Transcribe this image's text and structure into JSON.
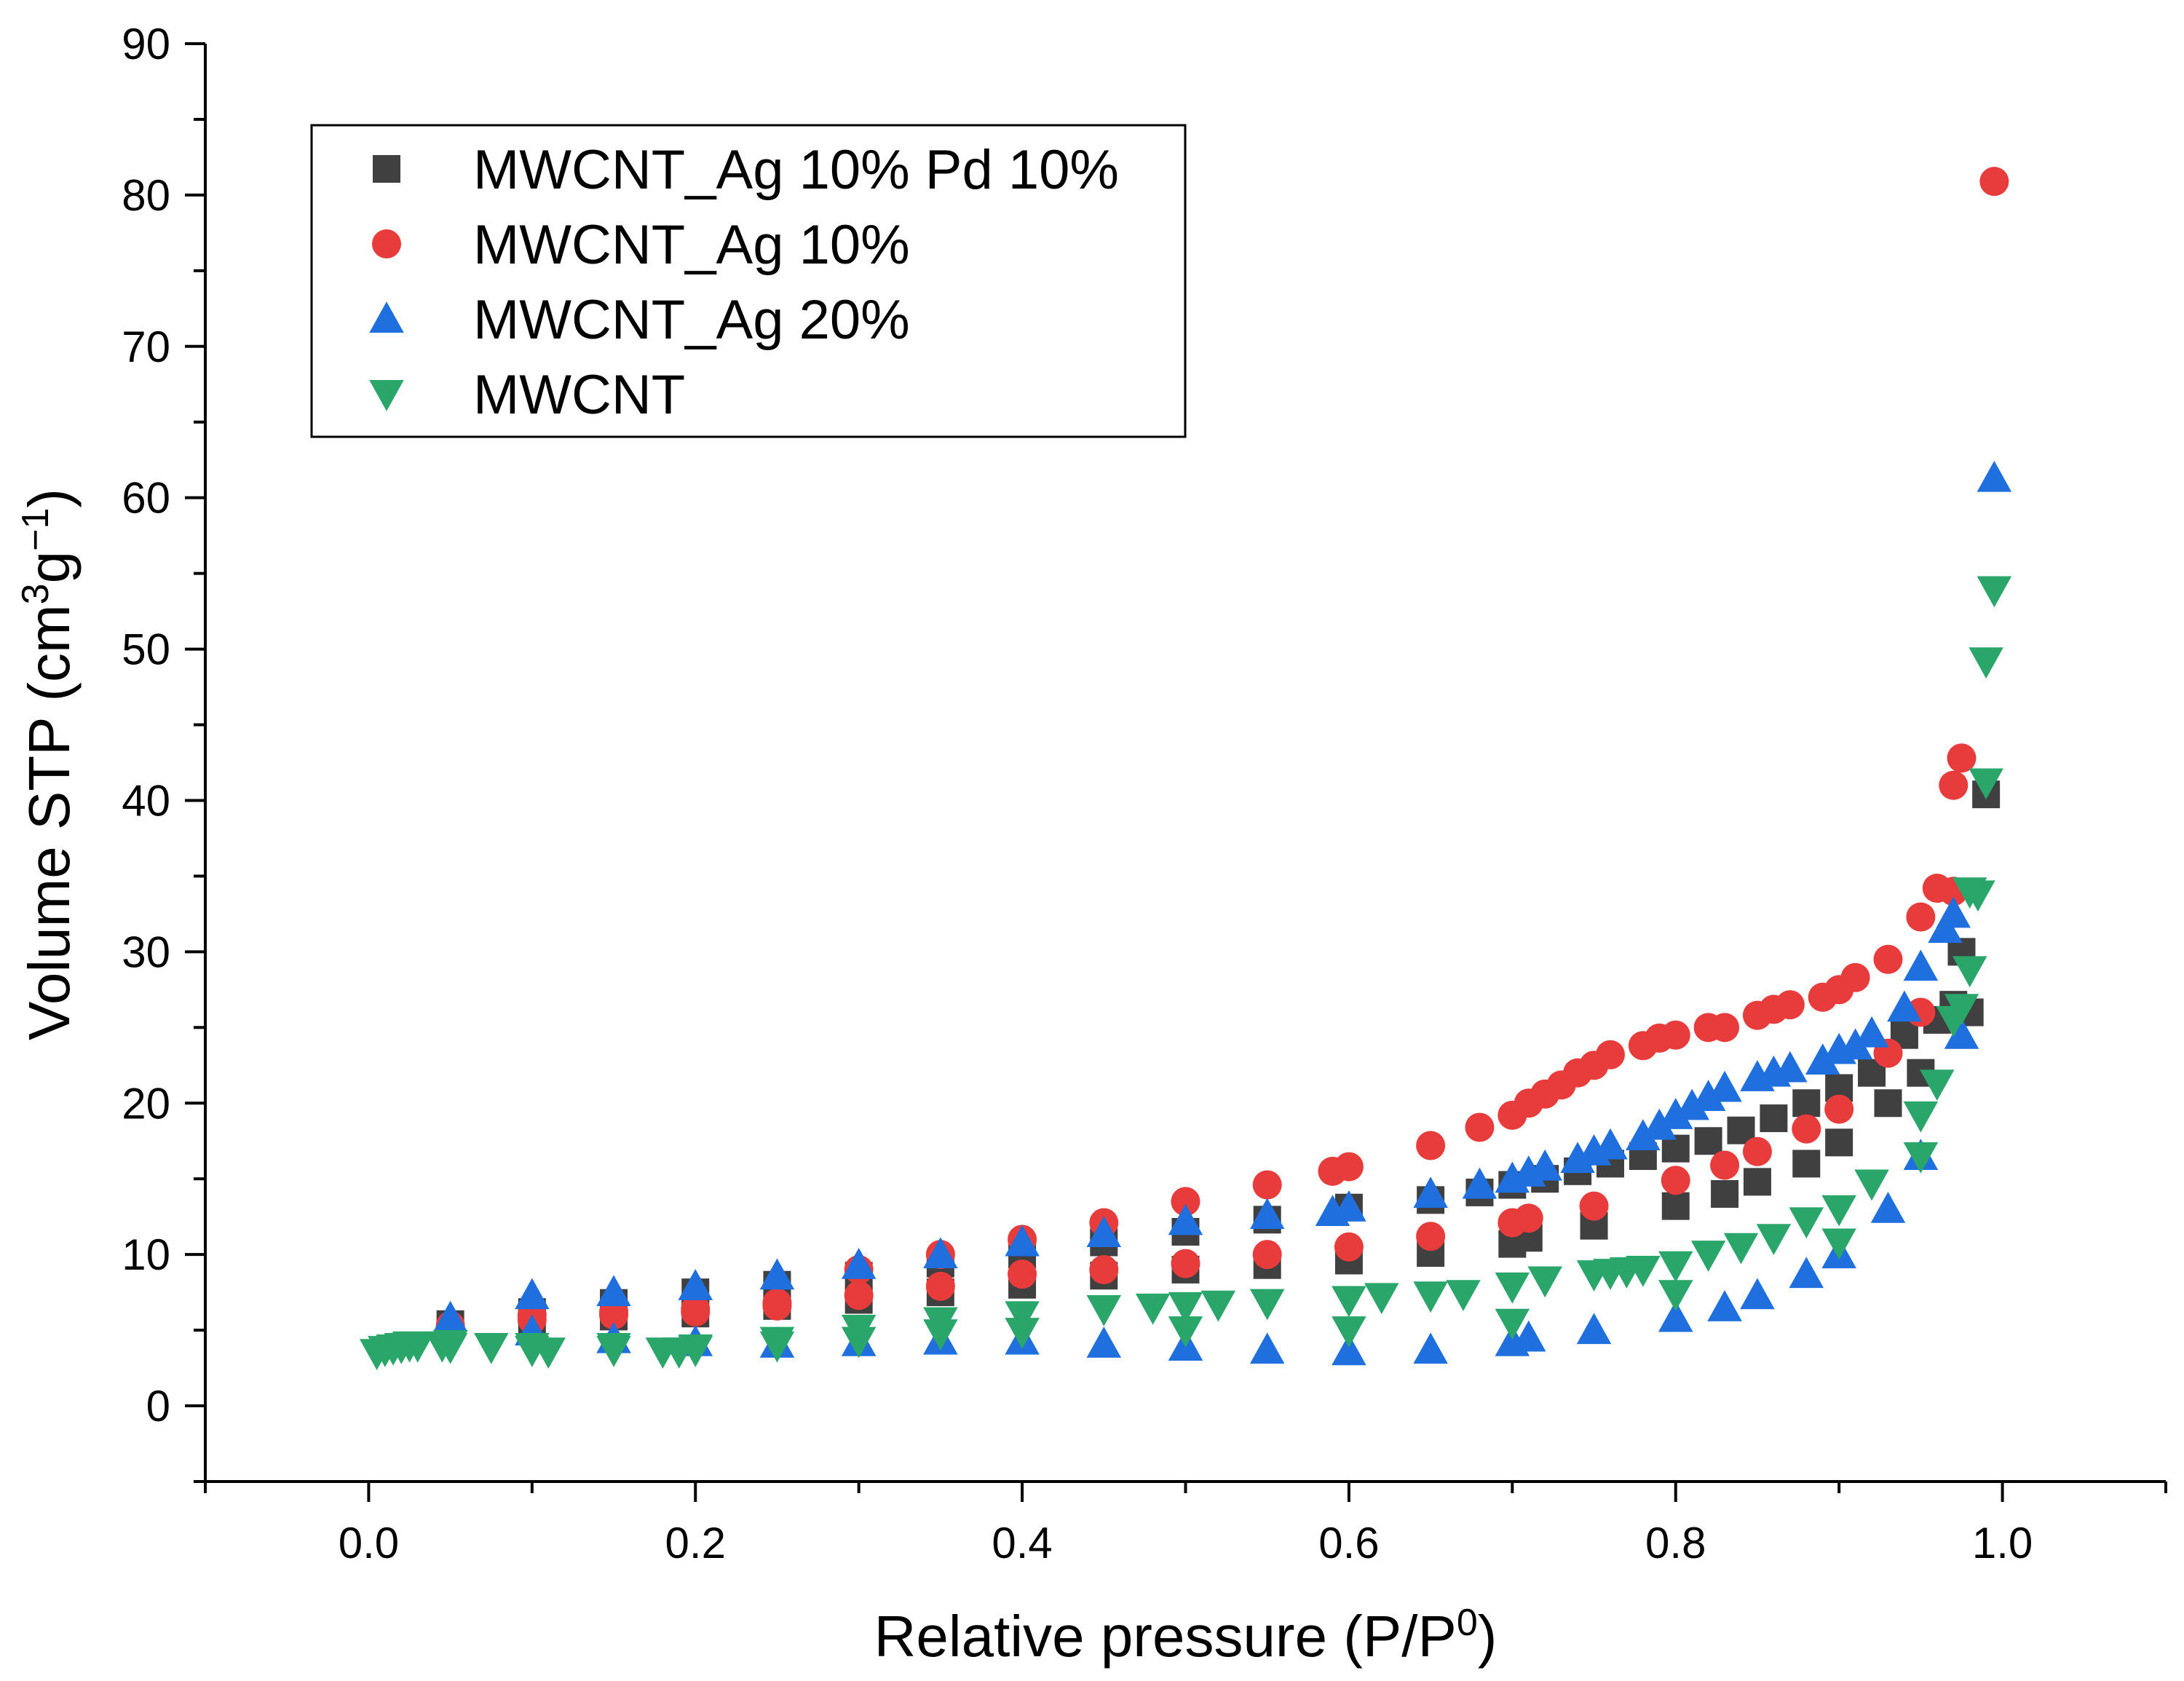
{
  "chart_data": {
    "type": "scatter",
    "xlabel": "Relative pressure (P/P",
    "xlabel_sup": "0",
    "xlabel_end": ")",
    "ylabel_parts": [
      "Volume STP (cm",
      "3",
      "g",
      "−1",
      ")"
    ],
    "xlim": [
      -0.1,
      1.1
    ],
    "ylim": [
      -5,
      90
    ],
    "x_ticks": [
      "0.0",
      "0.2",
      "0.4",
      "0.6",
      "0.8",
      "1.0"
    ],
    "y_ticks": [
      "0",
      "10",
      "20",
      "30",
      "40",
      "50",
      "60",
      "70",
      "80",
      "90"
    ],
    "grid": false,
    "legend_position": "top-left",
    "series": [
      {
        "name": "MWCNT_Ag 10% Pd 10%",
        "marker": "square",
        "color": "#404040",
        "points": [
          [
            0.05,
            5.4
          ],
          [
            0.1,
            5.7
          ],
          [
            0.15,
            5.9
          ],
          [
            0.2,
            6.1
          ],
          [
            0.25,
            6.6
          ],
          [
            0.3,
            7.0
          ],
          [
            0.35,
            7.5
          ],
          [
            0.4,
            8.0
          ],
          [
            0.45,
            8.6
          ],
          [
            0.5,
            9.0
          ],
          [
            0.55,
            9.3
          ],
          [
            0.6,
            9.6
          ],
          [
            0.65,
            10.1
          ],
          [
            0.7,
            10.7
          ],
          [
            0.71,
            11.1
          ],
          [
            0.75,
            11.9
          ],
          [
            0.8,
            13.2
          ],
          [
            0.83,
            14.0
          ],
          [
            0.85,
            14.8
          ],
          [
            0.88,
            16.0
          ],
          [
            0.9,
            17.4
          ],
          [
            0.93,
            20.0
          ],
          [
            0.95,
            22.0
          ],
          [
            0.97,
            26.5
          ],
          [
            0.975,
            30.0
          ],
          [
            0.99,
            40.4
          ],
          [
            0.98,
            26.0
          ],
          [
            0.96,
            25.5
          ],
          [
            0.94,
            24.5
          ],
          [
            0.92,
            22.0
          ],
          [
            0.9,
            21.0
          ],
          [
            0.88,
            20.0
          ],
          [
            0.86,
            19.0
          ],
          [
            0.84,
            18.2
          ],
          [
            0.82,
            17.5
          ],
          [
            0.8,
            17.0
          ],
          [
            0.78,
            16.5
          ],
          [
            0.76,
            16.0
          ],
          [
            0.74,
            15.5
          ],
          [
            0.72,
            15.0
          ],
          [
            0.7,
            14.6
          ],
          [
            0.68,
            14.1
          ],
          [
            0.65,
            13.6
          ],
          [
            0.6,
            13.1
          ],
          [
            0.55,
            12.3
          ],
          [
            0.5,
            11.5
          ],
          [
            0.45,
            10.8
          ],
          [
            0.4,
            10.0
          ],
          [
            0.35,
            9.4
          ],
          [
            0.3,
            8.6
          ],
          [
            0.25,
            8.0
          ],
          [
            0.2,
            7.5
          ],
          [
            0.15,
            6.8
          ],
          [
            0.1,
            6.2
          ]
        ]
      },
      {
        "name": "MWCNT_Ag 10%",
        "marker": "circle",
        "color": "#e83b3b",
        "points": [
          [
            0.05,
            5.3
          ],
          [
            0.1,
            5.7
          ],
          [
            0.15,
            6.0
          ],
          [
            0.2,
            6.2
          ],
          [
            0.25,
            6.6
          ],
          [
            0.3,
            7.3
          ],
          [
            0.35,
            7.9
          ],
          [
            0.4,
            8.7
          ],
          [
            0.45,
            9.0
          ],
          [
            0.5,
            9.4
          ],
          [
            0.55,
            10.0
          ],
          [
            0.6,
            10.5
          ],
          [
            0.65,
            11.2
          ],
          [
            0.7,
            12.1
          ],
          [
            0.71,
            12.4
          ],
          [
            0.75,
            13.2
          ],
          [
            0.8,
            14.9
          ],
          [
            0.83,
            15.9
          ],
          [
            0.85,
            16.8
          ],
          [
            0.88,
            18.3
          ],
          [
            0.9,
            19.6
          ],
          [
            0.93,
            23.3
          ],
          [
            0.95,
            26.0
          ],
          [
            0.97,
            34.0
          ],
          [
            0.97,
            41.0
          ],
          [
            0.975,
            42.8
          ],
          [
            0.995,
            80.9
          ],
          [
            0.96,
            34.2
          ],
          [
            0.95,
            32.3
          ],
          [
            0.93,
            29.5
          ],
          [
            0.91,
            28.3
          ],
          [
            0.9,
            27.5
          ],
          [
            0.89,
            27.0
          ],
          [
            0.87,
            26.5
          ],
          [
            0.86,
            26.2
          ],
          [
            0.85,
            25.8
          ],
          [
            0.83,
            25.0
          ],
          [
            0.82,
            25.0
          ],
          [
            0.8,
            24.5
          ],
          [
            0.79,
            24.3
          ],
          [
            0.78,
            23.8
          ],
          [
            0.76,
            23.2
          ],
          [
            0.75,
            22.5
          ],
          [
            0.74,
            22.0
          ],
          [
            0.73,
            21.2
          ],
          [
            0.72,
            20.6
          ],
          [
            0.71,
            20.0
          ],
          [
            0.7,
            19.2
          ],
          [
            0.68,
            18.4
          ],
          [
            0.65,
            17.2
          ],
          [
            0.6,
            15.8
          ],
          [
            0.59,
            15.5
          ],
          [
            0.55,
            14.6
          ],
          [
            0.5,
            13.5
          ],
          [
            0.45,
            12.1
          ],
          [
            0.4,
            11.0
          ],
          [
            0.35,
            10.0
          ],
          [
            0.3,
            9.0
          ],
          [
            0.25,
            6.8
          ],
          [
            0.2,
            6.4
          ],
          [
            0.15,
            6.2
          ],
          [
            0.1,
            6.0
          ]
        ]
      },
      {
        "name": "MWCNT_Ag 20%",
        "marker": "triangle-up",
        "color": "#1f6fde",
        "points": [
          [
            0.05,
            5.8
          ],
          [
            0.1,
            7.3
          ],
          [
            0.15,
            7.5
          ],
          [
            0.2,
            7.9
          ],
          [
            0.25,
            8.6
          ],
          [
            0.3,
            9.3
          ],
          [
            0.35,
            10.0
          ],
          [
            0.4,
            10.8
          ],
          [
            0.45,
            11.4
          ],
          [
            0.5,
            12.2
          ],
          [
            0.55,
            12.6
          ],
          [
            0.59,
            12.8
          ],
          [
            0.6,
            13.1
          ],
          [
            0.65,
            14.0
          ],
          [
            0.68,
            14.6
          ],
          [
            0.7,
            15.0
          ],
          [
            0.71,
            15.4
          ],
          [
            0.72,
            15.8
          ],
          [
            0.74,
            16.3
          ],
          [
            0.75,
            16.8
          ],
          [
            0.76,
            17.2
          ],
          [
            0.78,
            17.8
          ],
          [
            0.79,
            18.5
          ],
          [
            0.8,
            19.2
          ],
          [
            0.81,
            19.8
          ],
          [
            0.82,
            20.4
          ],
          [
            0.83,
            21.0
          ],
          [
            0.85,
            21.7
          ],
          [
            0.86,
            22.0
          ],
          [
            0.87,
            22.3
          ],
          [
            0.89,
            22.8
          ],
          [
            0.9,
            23.5
          ],
          [
            0.91,
            23.8
          ],
          [
            0.92,
            24.6
          ],
          [
            0.94,
            26.3
          ],
          [
            0.95,
            29.0
          ],
          [
            0.965,
            31.5
          ],
          [
            0.97,
            32.5
          ],
          [
            0.995,
            61.3
          ],
          [
            0.975,
            24.5
          ],
          [
            0.95,
            16.5
          ],
          [
            0.93,
            13.0
          ],
          [
            0.9,
            10.0
          ],
          [
            0.88,
            8.7
          ],
          [
            0.85,
            7.3
          ],
          [
            0.83,
            6.5
          ],
          [
            0.8,
            5.8
          ],
          [
            0.75,
            5.0
          ],
          [
            0.71,
            4.5
          ],
          [
            0.7,
            4.2
          ],
          [
            0.65,
            3.7
          ],
          [
            0.6,
            3.6
          ],
          [
            0.55,
            3.7
          ],
          [
            0.5,
            3.9
          ],
          [
            0.45,
            4.1
          ],
          [
            0.4,
            4.3
          ],
          [
            0.35,
            4.3
          ],
          [
            0.3,
            4.2
          ],
          [
            0.25,
            4.1
          ],
          [
            0.2,
            4.2
          ],
          [
            0.15,
            4.4
          ],
          [
            0.1,
            4.9
          ]
        ]
      },
      {
        "name": "MWCNT",
        "marker": "triangle-down",
        "color": "#2aa66b",
        "points": [
          [
            0.005,
            3.5
          ],
          [
            0.01,
            3.7
          ],
          [
            0.015,
            3.8
          ],
          [
            0.02,
            3.9
          ],
          [
            0.025,
            4.0
          ],
          [
            0.03,
            4.0
          ],
          [
            0.045,
            4.0
          ],
          [
            0.05,
            4.1
          ],
          [
            0.075,
            3.9
          ],
          [
            0.1,
            3.9
          ],
          [
            0.11,
            3.6
          ],
          [
            0.15,
            3.7
          ],
          [
            0.18,
            3.6
          ],
          [
            0.19,
            3.6
          ],
          [
            0.2,
            3.8
          ],
          [
            0.25,
            4.3
          ],
          [
            0.3,
            5.1
          ],
          [
            0.35,
            5.6
          ],
          [
            0.4,
            6.0
          ],
          [
            0.45,
            6.4
          ],
          [
            0.48,
            6.5
          ],
          [
            0.5,
            6.6
          ],
          [
            0.52,
            6.7
          ],
          [
            0.55,
            6.8
          ],
          [
            0.6,
            7.0
          ],
          [
            0.62,
            7.2
          ],
          [
            0.65,
            7.3
          ],
          [
            0.67,
            7.4
          ],
          [
            0.7,
            7.9
          ],
          [
            0.72,
            8.3
          ],
          [
            0.75,
            8.7
          ],
          [
            0.76,
            8.8
          ],
          [
            0.77,
            8.9
          ],
          [
            0.78,
            9.0
          ],
          [
            0.8,
            9.3
          ],
          [
            0.82,
            10.0
          ],
          [
            0.84,
            10.5
          ],
          [
            0.86,
            11.1
          ],
          [
            0.88,
            12.2
          ],
          [
            0.9,
            13.0
          ],
          [
            0.92,
            14.7
          ],
          [
            0.95,
            16.5
          ],
          [
            0.96,
            21.3
          ],
          [
            0.95,
            19.2
          ],
          [
            0.97,
            25.5
          ],
          [
            0.975,
            26.3
          ],
          [
            0.98,
            28.8
          ],
          [
            0.98,
            34.0
          ],
          [
            0.985,
            33.8
          ],
          [
            0.99,
            41.2
          ],
          [
            0.99,
            49.2
          ],
          [
            0.995,
            53.9
          ],
          [
            0.9,
            10.8
          ],
          [
            0.8,
            7.4
          ],
          [
            0.7,
            5.5
          ],
          [
            0.6,
            5.0
          ],
          [
            0.5,
            5.0
          ],
          [
            0.4,
            4.9
          ],
          [
            0.35,
            4.8
          ],
          [
            0.3,
            4.3
          ],
          [
            0.25,
            4.0
          ],
          [
            0.2,
            3.7
          ],
          [
            0.15,
            3.9
          ],
          [
            0.1,
            3.7
          ],
          [
            0.05,
            3.9
          ]
        ]
      }
    ]
  }
}
